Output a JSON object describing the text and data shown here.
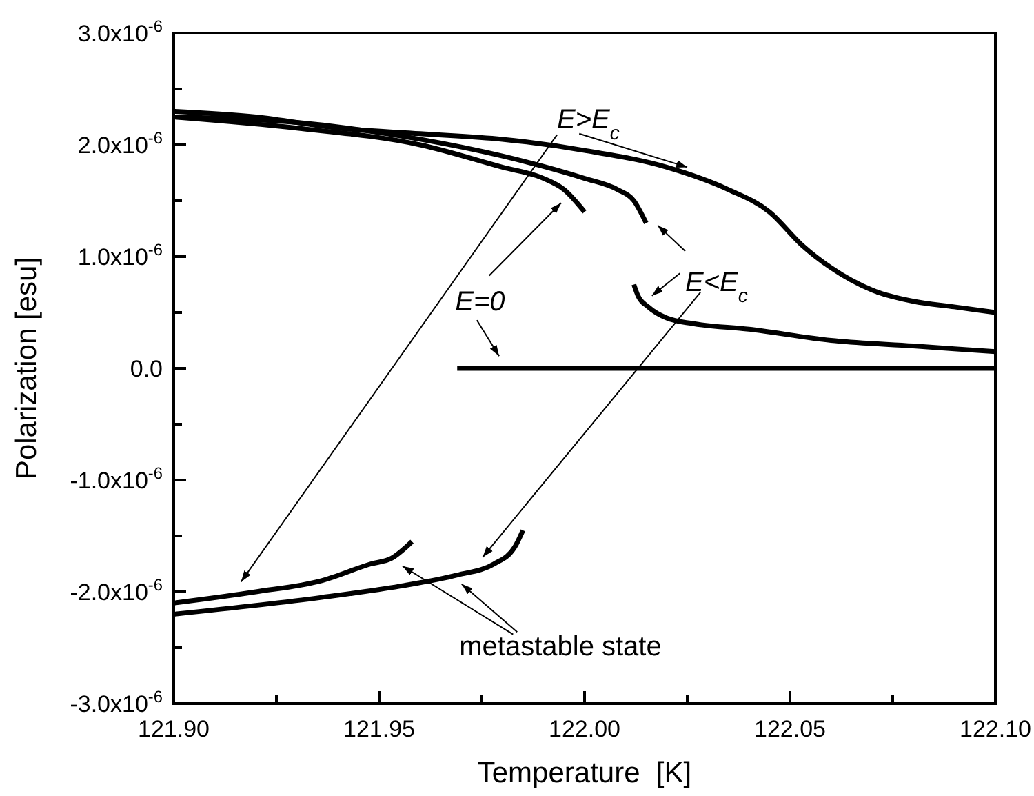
{
  "chart_data": {
    "type": "line",
    "xlabel": "Temperature  [K]",
    "ylabel": "Polarization [esu]",
    "xlim": [
      121.9,
      122.1
    ],
    "ylim": [
      -3e-06,
      3e-06
    ],
    "xticks": [
      {
        "value": 121.9,
        "label": "121.90"
      },
      {
        "value": 121.925,
        "label": null
      },
      {
        "value": 121.95,
        "label": "121.95"
      },
      {
        "value": 121.975,
        "label": null
      },
      {
        "value": 122.0,
        "label": "122.00"
      },
      {
        "value": 122.025,
        "label": null
      },
      {
        "value": 122.05,
        "label": "122.05"
      },
      {
        "value": 122.075,
        "label": null
      },
      {
        "value": 122.1,
        "label": "122.10"
      }
    ],
    "yticks": [
      {
        "value": -3e-06,
        "label": "-3.0x10$^{-6}$"
      },
      {
        "value": -2.5e-06,
        "label": null
      },
      {
        "value": -2e-06,
        "label": "-2.0x10$^{-6}$"
      },
      {
        "value": -1.5e-06,
        "label": null
      },
      {
        "value": -1e-06,
        "label": "-1.0x10$^{-6}$"
      },
      {
        "value": -5e-07,
        "label": null
      },
      {
        "value": 0,
        "label": "0.0"
      },
      {
        "value": 5e-07,
        "label": null
      },
      {
        "value": 1e-06,
        "label": "1.0x10$^{-6}$"
      },
      {
        "value": 1.5e-06,
        "label": null
      },
      {
        "value": 2e-06,
        "label": "2.0x10$^{-6}$"
      },
      {
        "value": 2.5e-06,
        "label": null
      },
      {
        "value": 3e-06,
        "label": "3.0x10$^{-6}$"
      }
    ],
    "series": [
      {
        "color": "#000000",
        "x": [
          121.9,
          121.92,
          121.94,
          121.96,
          121.98,
          122.0,
          122.02,
          122.035,
          122.045,
          122.053,
          122.06,
          122.07,
          122.08,
          122.09,
          122.1
        ],
        "values": [
          2.3e-06,
          2.25e-06,
          2.15e-06,
          2.1e-06,
          2.05e-06,
          1.95e-06,
          1.8e-06,
          1.6e-06,
          1.4e-06,
          1.1e-06,
          9e-07,
          7e-07,
          6e-07,
          5.5e-07,
          5e-07
        ]
      },
      {
        "color": "#000000",
        "x": [
          121.9,
          121.93,
          121.96,
          121.98,
          122.0,
          122.008,
          122.012,
          122.015
        ],
        "values": [
          2.25e-06,
          2.2e-06,
          2.05e-06,
          1.9e-06,
          1.7e-06,
          1.6e-06,
          1.5e-06,
          1.3e-06
        ]
      },
      {
        "color": "#000000",
        "x": [
          121.9,
          121.93,
          121.96,
          121.98,
          121.99,
          121.995,
          122.0
        ],
        "values": [
          2.25e-06,
          2.15e-06,
          2e-06,
          1.8e-06,
          1.7e-06,
          1.6e-06,
          1.4e-06
        ]
      },
      {
        "color": "#000000",
        "x": [
          122.012,
          122.013,
          122.0155,
          122.02,
          122.0265,
          122.04,
          122.06,
          122.08,
          122.1
        ],
        "values": [
          7.5e-07,
          6.5e-07,
          5.5e-07,
          4.5e-07,
          4e-07,
          3.5e-07,
          2.5e-07,
          2e-07,
          1.5e-07
        ]
      },
      {
        "color": "#000000",
        "x": [
          121.969,
          122.1
        ],
        "values": [
          0,
          0
        ]
      },
      {
        "color": "#000000",
        "x": [
          121.9,
          121.92,
          121.936,
          121.948,
          121.953,
          121.958
        ],
        "values": [
          -2.1e-06,
          -2e-06,
          -1.9e-06,
          -1.75e-06,
          -1.7e-06,
          -1.55e-06
        ]
      },
      {
        "color": "#000000",
        "x": [
          121.9,
          121.936,
          121.955,
          121.969,
          121.978,
          121.983,
          121.985
        ],
        "values": [
          -2.2e-06,
          -2.05e-06,
          -1.95e-06,
          -1.85e-06,
          -1.75e-06,
          -1.6e-06,
          -1.45e-06
        ]
      }
    ],
    "annotations": [
      {
        "text": "E>E$_{c}$",
        "x": 122.025,
        "y": 1.8e-06
      },
      "E=0",
      "E<E$_{c}$",
      "metastable state"
    ]
  }
}
